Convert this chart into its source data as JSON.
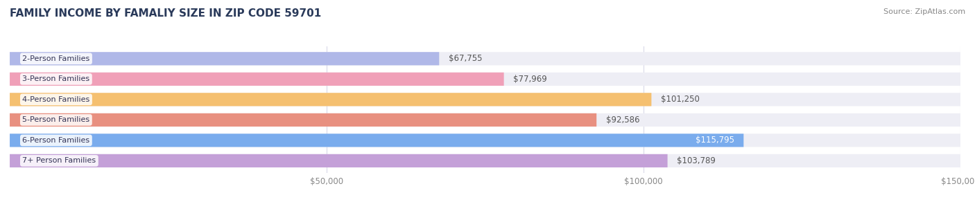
{
  "title": "FAMILY INCOME BY FAMALIY SIZE IN ZIP CODE 59701",
  "source": "Source: ZipAtlas.com",
  "categories": [
    "2-Person Families",
    "3-Person Families",
    "4-Person Families",
    "5-Person Families",
    "6-Person Families",
    "7+ Person Families"
  ],
  "values": [
    67755,
    77969,
    101250,
    92586,
    115795,
    103789
  ],
  "labels": [
    "$67,755",
    "$77,969",
    "$101,250",
    "$92,586",
    "$115,795",
    "$103,789"
  ],
  "bar_colors": [
    "#b0b8e8",
    "#f0a0b8",
    "#f5c070",
    "#e89080",
    "#7aaced",
    "#c4a0d8"
  ],
  "bar_bg_color": "#eeeef5",
  "xlim": [
    0,
    150000
  ],
  "xtick_labels": [
    "$50,000",
    "$100,000",
    "$150,000"
  ],
  "xtick_values": [
    50000,
    100000,
    150000
  ],
  "title_color": "#2a3a5a",
  "title_fontsize": 11,
  "label_fontsize": 8.5,
  "source_fontsize": 8,
  "category_fontsize": 8,
  "bar_height": 0.65,
  "bg_color": "#ffffff",
  "grid_color": "#d8d8e8",
  "label_inside_color": "#ffffff",
  "label_outside_color": "#555555",
  "label_inside_indices": [
    4
  ]
}
